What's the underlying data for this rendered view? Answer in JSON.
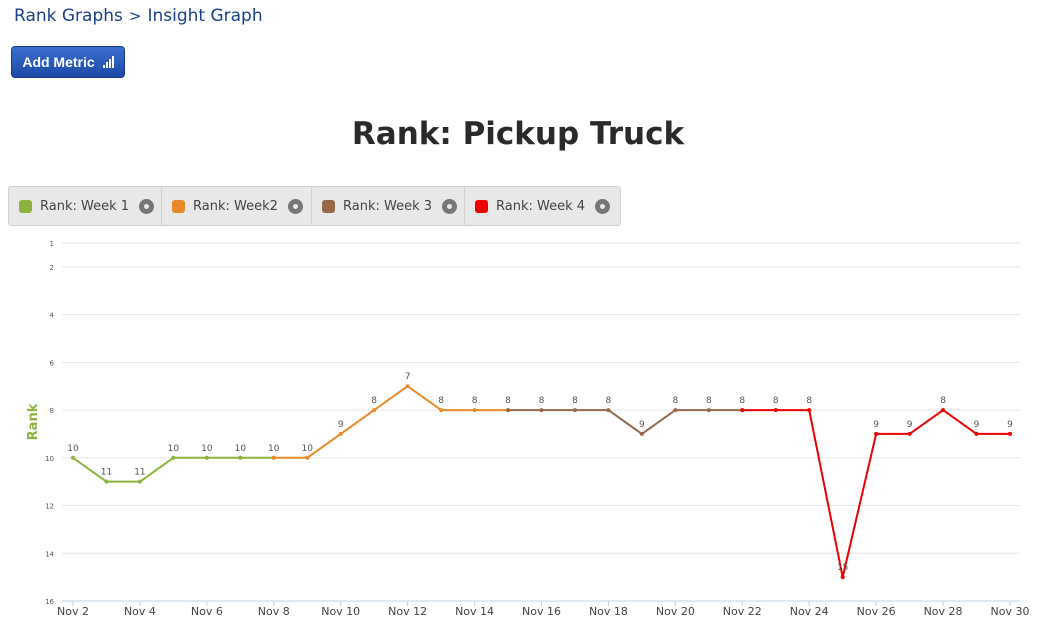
{
  "breadcrumb": {
    "parent": "Rank Graphs",
    "separator": ">",
    "current": "Insight Graph"
  },
  "toolbar": {
    "add_metric_label": "Add Metric"
  },
  "chart_data": {
    "type": "line",
    "title": "Rank: Pickup Truck",
    "xlabel": "",
    "ylabel": "Rank",
    "y_inverted": true,
    "ylim": [
      1,
      16
    ],
    "yticks": [
      1,
      2,
      4,
      6,
      8,
      10,
      12,
      14,
      16
    ],
    "x": [
      "Nov 2",
      "Nov 3",
      "Nov 4",
      "Nov 5",
      "Nov 6",
      "Nov 7",
      "Nov 8",
      "Nov 9",
      "Nov 10",
      "Nov 11",
      "Nov 12",
      "Nov 13",
      "Nov 14",
      "Nov 15",
      "Nov 16",
      "Nov 17",
      "Nov 18",
      "Nov 19",
      "Nov 20",
      "Nov 21",
      "Nov 22",
      "Nov 23",
      "Nov 24",
      "Nov 25",
      "Nov 26",
      "Nov 27",
      "Nov 28",
      "Nov 29",
      "Nov 30"
    ],
    "xtick_labels": [
      "Nov 2",
      "Nov 4",
      "Nov 6",
      "Nov 8",
      "Nov 10",
      "Nov 12",
      "Nov 14",
      "Nov 16",
      "Nov 18",
      "Nov 20",
      "Nov 22",
      "Nov 24",
      "Nov 26",
      "Nov 28",
      "Nov 30"
    ],
    "grid": true,
    "legend_position": "top-left",
    "series": [
      {
        "name": "Rank: Week 1",
        "color": "#8bb33e",
        "x": [
          "Nov 2",
          "Nov 3",
          "Nov 4",
          "Nov 5",
          "Nov 6",
          "Nov 7",
          "Nov 8"
        ],
        "values": [
          10,
          11,
          11,
          10,
          10,
          10,
          10
        ]
      },
      {
        "name": "Rank: Week2",
        "color": "#e8892a",
        "x": [
          "Nov 8",
          "Nov 9",
          "Nov 10",
          "Nov 11",
          "Nov 12",
          "Nov 13",
          "Nov 14",
          "Nov 15"
        ],
        "values": [
          10,
          10,
          9,
          8,
          7,
          8,
          8,
          8
        ]
      },
      {
        "name": "Rank: Week 3",
        "color": "#96684a",
        "x": [
          "Nov 15",
          "Nov 16",
          "Nov 17",
          "Nov 18",
          "Nov 19",
          "Nov 20",
          "Nov 21",
          "Nov 22"
        ],
        "values": [
          8,
          8,
          8,
          8,
          9,
          8,
          8,
          8
        ]
      },
      {
        "name": "Rank: Week 4",
        "color": "#ee0000",
        "x": [
          "Nov 22",
          "Nov 23",
          "Nov 24",
          "Nov 25",
          "Nov 26",
          "Nov 27",
          "Nov 28",
          "Nov 29",
          "Nov 30"
        ],
        "values": [
          8,
          8,
          8,
          15,
          9,
          9,
          8,
          9,
          9
        ]
      }
    ],
    "data_labels": [
      10,
      11,
      11,
      10,
      10,
      10,
      10,
      10,
      9,
      8,
      7,
      8,
      8,
      8,
      8,
      8,
      8,
      9,
      8,
      8,
      8,
      8,
      8,
      15,
      9,
      9,
      8,
      9,
      9
    ]
  }
}
